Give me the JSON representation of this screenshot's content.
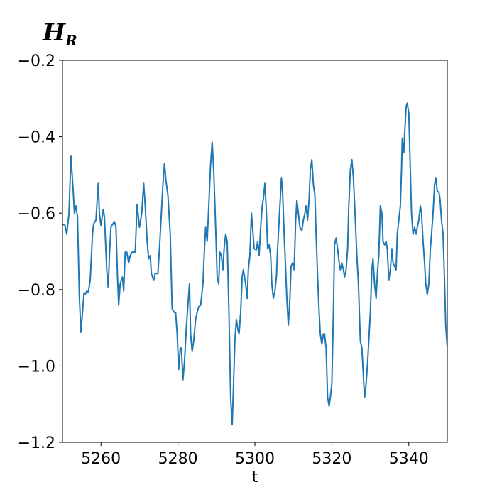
{
  "chart_data": {
    "type": "line",
    "title": "H",
    "title_subscript": "R",
    "xlabel": "t",
    "xlim": [
      5250,
      5350
    ],
    "xticks": [
      5260,
      5280,
      5300,
      5320,
      5340
    ],
    "ylim": [
      -1.2,
      -0.2
    ],
    "yticks": [
      {
        "value": -1.2,
        "label": "−1.2"
      },
      {
        "value": -1.0,
        "label": "−1.0"
      },
      {
        "value": -0.8,
        "label": "−0.8"
      },
      {
        "value": -0.6,
        "label": "−0.6"
      },
      {
        "value": -0.4,
        "label": "−0.4"
      },
      {
        "value": -0.2,
        "label": "−0.2"
      }
    ],
    "grid": false,
    "x": [
      5250.0,
      5250.7,
      5251.1,
      5251.7,
      5252.2,
      5252.8,
      5253.1,
      5253.5,
      5253.9,
      5254.4,
      5254.8,
      5255.2,
      5255.6,
      5255.9,
      5256.3,
      5256.7,
      5257.2,
      5257.8,
      5258.1,
      5258.7,
      5259.1,
      5259.3,
      5259.6,
      5260.0,
      5260.6,
      5260.9,
      5261.5,
      5261.9,
      5262.2,
      5262.6,
      5263.1,
      5263.5,
      5263.9,
      5264.3,
      5264.6,
      5265.0,
      5265.6,
      5265.9,
      5266.3,
      5266.7,
      5267.2,
      5267.6,
      5268.1,
      5268.9,
      5269.4,
      5270.0,
      5270.6,
      5271.1,
      5271.5,
      5272.0,
      5272.4,
      5272.8,
      5273.1,
      5273.7,
      5274.1,
      5274.8,
      5275.2,
      5275.7,
      5276.1,
      5276.5,
      5276.9,
      5277.4,
      5278.0,
      5278.5,
      5279.1,
      5279.4,
      5279.8,
      5280.2,
      5280.6,
      5280.9,
      5281.3,
      5281.7,
      5282.2,
      5282.6,
      5283.0,
      5283.3,
      5283.7,
      5284.1,
      5284.6,
      5285.0,
      5285.4,
      5285.9,
      5286.5,
      5286.9,
      5287.2,
      5287.6,
      5288.1,
      5288.5,
      5288.9,
      5289.3,
      5289.8,
      5290.2,
      5290.6,
      5290.9,
      5291.3,
      5291.7,
      5292.0,
      5292.4,
      5292.8,
      5293.3,
      5293.7,
      5294.1,
      5294.4,
      5294.8,
      5295.2,
      5295.6,
      5295.9,
      5296.3,
      5296.7,
      5297.0,
      5297.6,
      5298.0,
      5298.3,
      5298.7,
      5299.1,
      5299.4,
      5299.8,
      5300.4,
      5300.7,
      5301.1,
      5301.5,
      5301.9,
      5302.2,
      5302.6,
      5303.0,
      5303.3,
      5303.7,
      5304.1,
      5304.4,
      5304.8,
      5305.2,
      5305.6,
      5305.9,
      5306.5,
      5306.9,
      5307.2,
      5307.6,
      5308.0,
      5308.3,
      5308.7,
      5309.1,
      5309.4,
      5309.8,
      5310.2,
      5310.6,
      5310.9,
      5311.3,
      5311.7,
      5312.2,
      5312.6,
      5313.0,
      5313.3,
      5313.7,
      5314.1,
      5314.4,
      5314.8,
      5315.2,
      5315.6,
      5315.9,
      5316.3,
      5316.7,
      5317.0,
      5317.4,
      5317.8,
      5318.1,
      5318.5,
      5318.9,
      5319.3,
      5319.6,
      5320.0,
      5320.4,
      5320.7,
      5321.1,
      5321.5,
      5321.9,
      5322.2,
      5322.6,
      5323.0,
      5323.3,
      5323.7,
      5324.1,
      5324.4,
      5324.8,
      5325.2,
      5325.6,
      5326.1,
      5326.5,
      5326.9,
      5327.4,
      5327.8,
      5328.1,
      5328.5,
      5328.9,
      5329.3,
      5329.6,
      5330.0,
      5330.4,
      5330.7,
      5331.1,
      5331.5,
      5331.9,
      5332.2,
      5332.6,
      5333.0,
      5333.3,
      5333.7,
      5334.1,
      5334.4,
      5334.8,
      5335.2,
      5335.6,
      5335.9,
      5336.3,
      5336.7,
      5337.0,
      5337.4,
      5337.8,
      5338.1,
      5338.3,
      5338.7,
      5338.9,
      5339.3,
      5339.6,
      5340.0,
      5340.4,
      5340.7,
      5341.1,
      5341.5,
      5341.9,
      5342.2,
      5342.6,
      5343.0,
      5343.3,
      5343.7,
      5344.1,
      5344.4,
      5344.8,
      5345.2,
      5345.6,
      5345.9,
      5346.3,
      5346.7,
      5347.0,
      5347.4,
      5347.8,
      5348.1,
      5348.5,
      5348.9,
      5349.3,
      5349.6,
      5350.0
    ],
    "series": [
      {
        "color": "#1f77b4",
        "values": [
          -0.628,
          -0.633,
          -0.655,
          -0.6,
          -0.451,
          -0.544,
          -0.6,
          -0.581,
          -0.609,
          -0.823,
          -0.912,
          -0.86,
          -0.808,
          -0.813,
          -0.804,
          -0.808,
          -0.776,
          -0.655,
          -0.628,
          -0.618,
          -0.553,
          -0.522,
          -0.6,
          -0.633,
          -0.59,
          -0.609,
          -0.748,
          -0.795,
          -0.711,
          -0.637,
          -0.628,
          -0.622,
          -0.637,
          -0.767,
          -0.841,
          -0.785,
          -0.767,
          -0.804,
          -0.702,
          -0.702,
          -0.73,
          -0.711,
          -0.702,
          -0.702,
          -0.577,
          -0.637,
          -0.6,
          -0.522,
          -0.581,
          -0.674,
          -0.72,
          -0.711,
          -0.758,
          -0.776,
          -0.758,
          -0.758,
          -0.693,
          -0.6,
          -0.525,
          -0.47,
          -0.516,
          -0.553,
          -0.655,
          -0.851,
          -0.86,
          -0.86,
          -0.916,
          -1.009,
          -0.953,
          -0.953,
          -1.036,
          -0.99,
          -0.897,
          -0.841,
          -0.785,
          -0.916,
          -0.962,
          -0.934,
          -0.878,
          -0.86,
          -0.845,
          -0.841,
          -0.785,
          -0.693,
          -0.637,
          -0.674,
          -0.562,
          -0.47,
          -0.414,
          -0.488,
          -0.637,
          -0.767,
          -0.785,
          -0.702,
          -0.711,
          -0.748,
          -0.693,
          -0.655,
          -0.674,
          -0.878,
          -1.083,
          -1.154,
          -1.064,
          -0.934,
          -0.878,
          -0.906,
          -0.916,
          -0.86,
          -0.767,
          -0.748,
          -0.785,
          -0.823,
          -0.748,
          -0.711,
          -0.6,
          -0.637,
          -0.693,
          -0.696,
          -0.674,
          -0.711,
          -0.637,
          -0.581,
          -0.562,
          -0.522,
          -0.6,
          -0.693,
          -0.683,
          -0.711,
          -0.785,
          -0.823,
          -0.804,
          -0.767,
          -0.693,
          -0.581,
          -0.507,
          -0.544,
          -0.655,
          -0.748,
          -0.823,
          -0.893,
          -0.823,
          -0.739,
          -0.73,
          -0.748,
          -0.618,
          -0.566,
          -0.6,
          -0.637,
          -0.646,
          -0.618,
          -0.6,
          -0.581,
          -0.618,
          -0.562,
          -0.488,
          -0.46,
          -0.525,
          -0.553,
          -0.655,
          -0.767,
          -0.86,
          -0.916,
          -0.943,
          -0.916,
          -0.916,
          -0.953,
          -1.083,
          -1.105,
          -1.083,
          -1.046,
          -0.86,
          -0.683,
          -0.665,
          -0.693,
          -0.73,
          -0.748,
          -0.73,
          -0.748,
          -0.767,
          -0.748,
          -0.693,
          -0.581,
          -0.488,
          -0.46,
          -0.507,
          -0.618,
          -0.711,
          -0.785,
          -0.934,
          -0.953,
          -1.009,
          -1.083,
          -1.046,
          -0.99,
          -0.934,
          -0.86,
          -0.748,
          -0.72,
          -0.785,
          -0.823,
          -0.748,
          -0.711,
          -0.581,
          -0.6,
          -0.674,
          -0.683,
          -0.674,
          -0.693,
          -0.776,
          -0.748,
          -0.693,
          -0.73,
          -0.739,
          -0.748,
          -0.655,
          -0.618,
          -0.581,
          -0.488,
          -0.404,
          -0.442,
          -0.395,
          -0.321,
          -0.312,
          -0.339,
          -0.488,
          -0.6,
          -0.655,
          -0.637,
          -0.655,
          -0.637,
          -0.618,
          -0.581,
          -0.6,
          -0.674,
          -0.73,
          -0.785,
          -0.813,
          -0.785,
          -0.693,
          -0.655,
          -0.6,
          -0.525,
          -0.507,
          -0.544,
          -0.544,
          -0.562,
          -0.618,
          -0.655,
          -0.785,
          -0.897,
          -0.953
        ]
      }
    ]
  }
}
